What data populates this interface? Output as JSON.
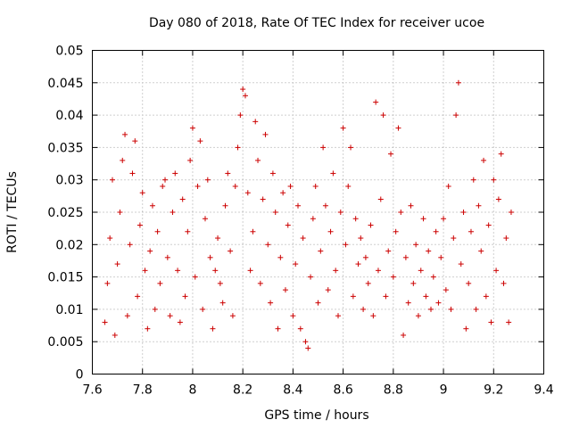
{
  "chart_data": {
    "type": "scatter",
    "title": "Day 080 of 2018, Rate Of TEC Index for receiver ucoe",
    "xlabel": "GPS time / hours",
    "ylabel": "ROTI / TECUs",
    "xlim": [
      7.6,
      9.4
    ],
    "ylim": [
      0,
      0.05
    ],
    "grid": true,
    "marker": "+",
    "marker_color": "#cc0000",
    "xticks": [
      "7.6",
      "7.8",
      "8",
      "8.2",
      "8.4",
      "8.6",
      "8.8",
      "9",
      "9.2",
      "9.4"
    ],
    "yticks": [
      "0",
      "0.005",
      "0.01",
      "0.015",
      "0.02",
      "0.025",
      "0.03",
      "0.035",
      "0.04",
      "0.045",
      "0.05"
    ],
    "xtick_values": [
      7.6,
      7.8,
      8.0,
      8.2,
      8.4,
      8.6,
      8.8,
      9.0,
      9.2,
      9.4
    ],
    "ytick_values": [
      0,
      0.005,
      0.01,
      0.015,
      0.02,
      0.025,
      0.03,
      0.035,
      0.04,
      0.045,
      0.05
    ],
    "series": [
      {
        "name": "ROTI",
        "points": [
          [
            7.65,
            0.008
          ],
          [
            7.66,
            0.014
          ],
          [
            7.67,
            0.021
          ],
          [
            7.68,
            0.03
          ],
          [
            7.69,
            0.006
          ],
          [
            7.7,
            0.017
          ],
          [
            7.71,
            0.025
          ],
          [
            7.72,
            0.033
          ],
          [
            7.73,
            0.037
          ],
          [
            7.74,
            0.009
          ],
          [
            7.75,
            0.02
          ],
          [
            7.76,
            0.031
          ],
          [
            7.77,
            0.036
          ],
          [
            7.78,
            0.012
          ],
          [
            7.79,
            0.023
          ],
          [
            7.8,
            0.028
          ],
          [
            7.81,
            0.016
          ],
          [
            7.82,
            0.007
          ],
          [
            7.83,
            0.019
          ],
          [
            7.84,
            0.026
          ],
          [
            7.85,
            0.01
          ],
          [
            7.86,
            0.022
          ],
          [
            7.87,
            0.014
          ],
          [
            7.88,
            0.029
          ],
          [
            7.89,
            0.03
          ],
          [
            7.9,
            0.018
          ],
          [
            7.91,
            0.009
          ],
          [
            7.92,
            0.025
          ],
          [
            7.93,
            0.031
          ],
          [
            7.94,
            0.016
          ],
          [
            7.95,
            0.008
          ],
          [
            7.96,
            0.027
          ],
          [
            7.97,
            0.012
          ],
          [
            7.98,
            0.022
          ],
          [
            7.99,
            0.033
          ],
          [
            8.0,
            0.038
          ],
          [
            8.01,
            0.015
          ],
          [
            8.02,
            0.029
          ],
          [
            8.03,
            0.036
          ],
          [
            8.04,
            0.01
          ],
          [
            8.05,
            0.024
          ],
          [
            8.06,
            0.03
          ],
          [
            8.07,
            0.018
          ],
          [
            8.08,
            0.007
          ],
          [
            8.09,
            0.016
          ],
          [
            8.1,
            0.021
          ],
          [
            8.11,
            0.014
          ],
          [
            8.12,
            0.011
          ],
          [
            8.13,
            0.026
          ],
          [
            8.14,
            0.031
          ],
          [
            8.15,
            0.019
          ],
          [
            8.16,
            0.009
          ],
          [
            8.17,
            0.029
          ],
          [
            8.18,
            0.035
          ],
          [
            8.19,
            0.04
          ],
          [
            8.2,
            0.044
          ],
          [
            8.21,
            0.043
          ],
          [
            8.22,
            0.028
          ],
          [
            8.23,
            0.016
          ],
          [
            8.24,
            0.022
          ],
          [
            8.25,
            0.039
          ],
          [
            8.26,
            0.033
          ],
          [
            8.27,
            0.014
          ],
          [
            8.28,
            0.027
          ],
          [
            8.29,
            0.037
          ],
          [
            8.3,
            0.02
          ],
          [
            8.31,
            0.011
          ],
          [
            8.32,
            0.031
          ],
          [
            8.33,
            0.025
          ],
          [
            8.34,
            0.007
          ],
          [
            8.35,
            0.018
          ],
          [
            8.36,
            0.028
          ],
          [
            8.37,
            0.013
          ],
          [
            8.38,
            0.023
          ],
          [
            8.39,
            0.029
          ],
          [
            8.4,
            0.009
          ],
          [
            8.41,
            0.017
          ],
          [
            8.42,
            0.026
          ],
          [
            8.43,
            0.007
          ],
          [
            8.44,
            0.021
          ],
          [
            8.45,
            0.005
          ],
          [
            8.46,
            0.004
          ],
          [
            8.47,
            0.015
          ],
          [
            8.48,
            0.024
          ],
          [
            8.49,
            0.029
          ],
          [
            8.5,
            0.011
          ],
          [
            8.51,
            0.019
          ],
          [
            8.52,
            0.035
          ],
          [
            8.53,
            0.026
          ],
          [
            8.54,
            0.013
          ],
          [
            8.55,
            0.022
          ],
          [
            8.56,
            0.031
          ],
          [
            8.57,
            0.016
          ],
          [
            8.58,
            0.009
          ],
          [
            8.59,
            0.025
          ],
          [
            8.6,
            0.038
          ],
          [
            8.61,
            0.02
          ],
          [
            8.62,
            0.029
          ],
          [
            8.63,
            0.035
          ],
          [
            8.64,
            0.012
          ],
          [
            8.65,
            0.024
          ],
          [
            8.66,
            0.017
          ],
          [
            8.67,
            0.021
          ],
          [
            8.68,
            0.01
          ],
          [
            8.69,
            0.018
          ],
          [
            8.7,
            0.014
          ],
          [
            8.71,
            0.023
          ],
          [
            8.72,
            0.009
          ],
          [
            8.73,
            0.042
          ],
          [
            8.74,
            0.016
          ],
          [
            8.75,
            0.027
          ],
          [
            8.76,
            0.04
          ],
          [
            8.77,
            0.012
          ],
          [
            8.78,
            0.019
          ],
          [
            8.79,
            0.034
          ],
          [
            8.8,
            0.015
          ],
          [
            8.81,
            0.022
          ],
          [
            8.82,
            0.038
          ],
          [
            8.83,
            0.025
          ],
          [
            8.84,
            0.006
          ],
          [
            8.85,
            0.018
          ],
          [
            8.86,
            0.011
          ],
          [
            8.87,
            0.026
          ],
          [
            8.88,
            0.014
          ],
          [
            8.89,
            0.02
          ],
          [
            8.9,
            0.009
          ],
          [
            8.91,
            0.016
          ],
          [
            8.92,
            0.024
          ],
          [
            8.93,
            0.012
          ],
          [
            8.94,
            0.019
          ],
          [
            8.95,
            0.01
          ],
          [
            8.96,
            0.015
          ],
          [
            8.97,
            0.022
          ],
          [
            8.98,
            0.011
          ],
          [
            8.99,
            0.018
          ],
          [
            9.0,
            0.024
          ],
          [
            9.01,
            0.013
          ],
          [
            9.02,
            0.029
          ],
          [
            9.03,
            0.01
          ],
          [
            9.04,
            0.021
          ],
          [
            9.05,
            0.04
          ],
          [
            9.06,
            0.045
          ],
          [
            9.07,
            0.017
          ],
          [
            9.08,
            0.025
          ],
          [
            9.09,
            0.007
          ],
          [
            9.1,
            0.014
          ],
          [
            9.11,
            0.022
          ],
          [
            9.12,
            0.03
          ],
          [
            9.13,
            0.01
          ],
          [
            9.14,
            0.026
          ],
          [
            9.15,
            0.019
          ],
          [
            9.16,
            0.033
          ],
          [
            9.17,
            0.012
          ],
          [
            9.18,
            0.023
          ],
          [
            9.19,
            0.008
          ],
          [
            9.2,
            0.03
          ],
          [
            9.21,
            0.016
          ],
          [
            9.22,
            0.027
          ],
          [
            9.23,
            0.034
          ],
          [
            9.24,
            0.014
          ],
          [
            9.25,
            0.021
          ],
          [
            9.26,
            0.008
          ],
          [
            9.27,
            0.025
          ]
        ]
      }
    ]
  }
}
